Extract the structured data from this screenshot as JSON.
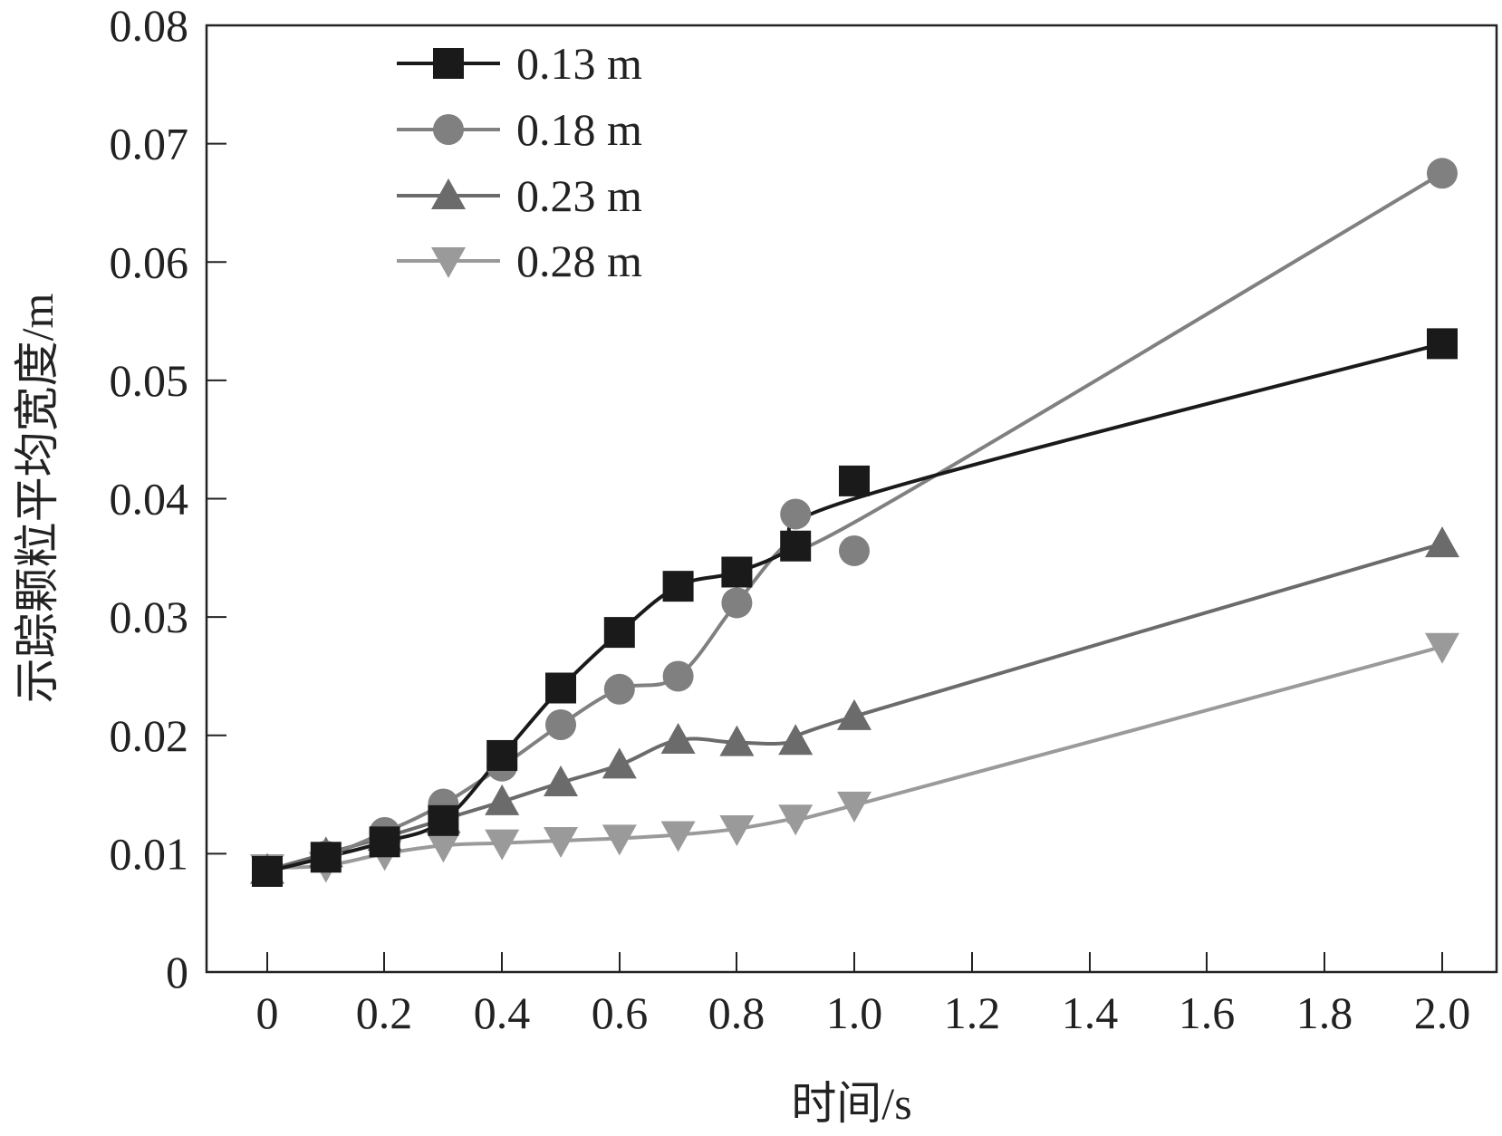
{
  "chart_data": {
    "type": "line",
    "title": "",
    "xlabel": "时间/s",
    "ylabel": "示踪颗粒平均宽度/m",
    "x_tick_labels": [
      "0",
      "0.2",
      "0.4",
      "0.6",
      "0.8",
      "1.0",
      "1.2",
      "1.4",
      "1.6",
      "1.8",
      "2.0"
    ],
    "y_tick_labels": [
      "0",
      "0.01",
      "0.02",
      "0.03",
      "0.04",
      "0.05",
      "0.06",
      "0.07",
      "0.08"
    ],
    "xlim": [
      -0.1,
      2.1
    ],
    "ylim": [
      0,
      0.08
    ],
    "grid": false,
    "legend_position": "top-left",
    "series": [
      {
        "name": "0.13 m",
        "marker": "square",
        "color": "#1a1a1a",
        "points": [
          [
            0,
            0.0085
          ],
          [
            0.1,
            0.0097
          ],
          [
            0.2,
            0.011
          ],
          [
            0.3,
            0.0128
          ],
          [
            0.4,
            0.0183
          ],
          [
            0.5,
            0.024
          ],
          [
            0.6,
            0.0287
          ],
          [
            0.7,
            0.0326
          ],
          [
            0.8,
            0.0338
          ],
          [
            0.9,
            0.036
          ],
          [
            1.0,
            0.0415
          ],
          [
            2.0,
            0.0531
          ]
        ]
      },
      {
        "name": "0.18 m",
        "marker": "circle",
        "color": "#808080",
        "points": [
          [
            0,
            0.0085
          ],
          [
            0.1,
            0.0098
          ],
          [
            0.2,
            0.0118
          ],
          [
            0.3,
            0.0142
          ],
          [
            0.4,
            0.0174
          ],
          [
            0.5,
            0.0209
          ],
          [
            0.6,
            0.0239
          ],
          [
            0.7,
            0.025
          ],
          [
            0.8,
            0.0312
          ],
          [
            0.9,
            0.0387
          ],
          [
            1.0,
            0.0356
          ],
          [
            2.0,
            0.0675
          ]
        ]
      },
      {
        "name": "0.23 m",
        "marker": "triangle-up",
        "color": "#6b6b6b",
        "points": [
          [
            0,
            0.0086
          ],
          [
            0.1,
            0.01
          ],
          [
            0.2,
            0.0114
          ],
          [
            0.3,
            0.0129
          ],
          [
            0.4,
            0.0144
          ],
          [
            0.5,
            0.016
          ],
          [
            0.6,
            0.0175
          ],
          [
            0.7,
            0.0196
          ],
          [
            0.8,
            0.0194
          ],
          [
            0.9,
            0.0195
          ],
          [
            1.0,
            0.0216
          ],
          [
            2.0,
            0.0362
          ]
        ]
      },
      {
        "name": "0.28 m",
        "marker": "triangle-down",
        "color": "#9a9a9a",
        "points": [
          [
            0,
            0.0088
          ],
          [
            0.1,
            0.009
          ],
          [
            0.2,
            0.01
          ],
          [
            0.3,
            0.0107
          ],
          [
            0.4,
            0.0109
          ],
          [
            0.5,
            0.0111
          ],
          [
            0.6,
            0.0113
          ],
          [
            0.7,
            0.0116
          ],
          [
            0.8,
            0.0121
          ],
          [
            0.9,
            0.013
          ],
          [
            1.0,
            0.0141
          ],
          [
            2.0,
            0.0275
          ]
        ]
      }
    ]
  }
}
